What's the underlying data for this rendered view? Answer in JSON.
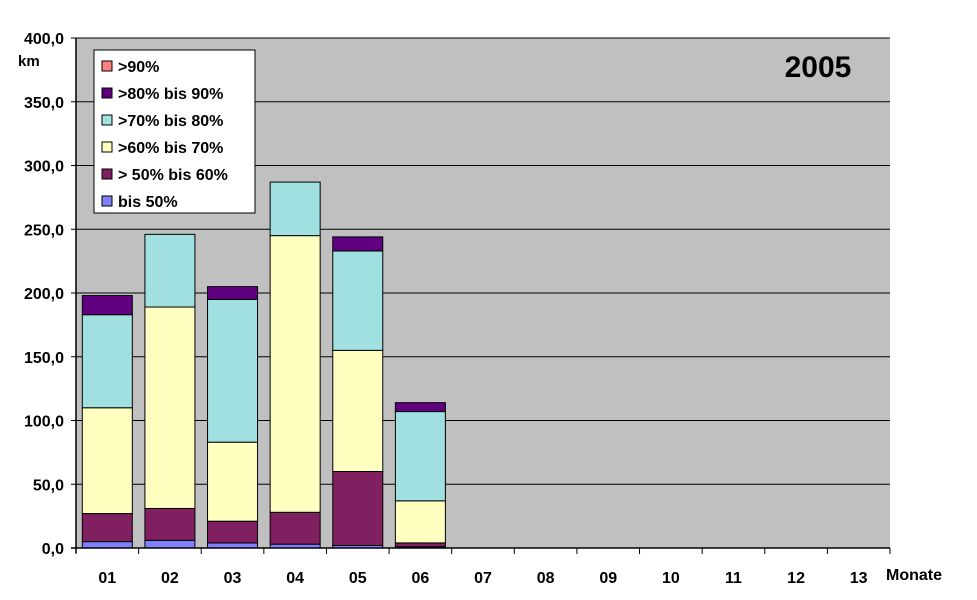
{
  "chart_data": {
    "type": "bar",
    "stacked": true,
    "title": "2005",
    "ylabel": "km",
    "xlabel": "Monate",
    "ylim": [
      0,
      400
    ],
    "y_ticks": [
      "0,0",
      "50,0",
      "100,0",
      "150,0",
      "200,0",
      "250,0",
      "300,0",
      "350,0",
      "400,0"
    ],
    "y_tick_values": [
      0,
      50,
      100,
      150,
      200,
      250,
      300,
      350,
      400
    ],
    "categories": [
      "01",
      "02",
      "03",
      "04",
      "05",
      "06",
      "07",
      "08",
      "09",
      "10",
      "11",
      "12",
      "13"
    ],
    "grid": true,
    "legend_position": "top-left",
    "series": [
      {
        "name": "bis  50%",
        "color": "#8080ff",
        "values": [
          5,
          6,
          4,
          3,
          2,
          1,
          0,
          0,
          0,
          0,
          0,
          0,
          0
        ]
      },
      {
        "name": "> 50% bis 60%",
        "color": "#802060",
        "values": [
          22,
          25,
          17,
          25,
          58,
          3,
          0,
          0,
          0,
          0,
          0,
          0,
          0
        ]
      },
      {
        "name": ">60% bis 70%",
        "color": "#ffffc0",
        "values": [
          83,
          158,
          62,
          217,
          95,
          33,
          0,
          0,
          0,
          0,
          0,
          0,
          0
        ]
      },
      {
        "name": ">70% bis 80%",
        "color": "#a0e0e0",
        "values": [
          73,
          57,
          112,
          42,
          78,
          70,
          0,
          0,
          0,
          0,
          0,
          0,
          0
        ]
      },
      {
        "name": ">80% bis 90%",
        "color": "#600080",
        "values": [
          15,
          0,
          10,
          0,
          11,
          7,
          0,
          0,
          0,
          0,
          0,
          0,
          0
        ]
      },
      {
        "name": ">90%",
        "color": "#ff8080",
        "values": [
          0,
          0,
          0,
          0,
          0,
          0,
          0,
          0,
          0,
          0,
          0,
          0,
          0
        ]
      }
    ],
    "colors": {
      "plot_background": "#c0c0c0",
      "gridline": "#000000",
      "bar_outline": "#000000"
    }
  }
}
